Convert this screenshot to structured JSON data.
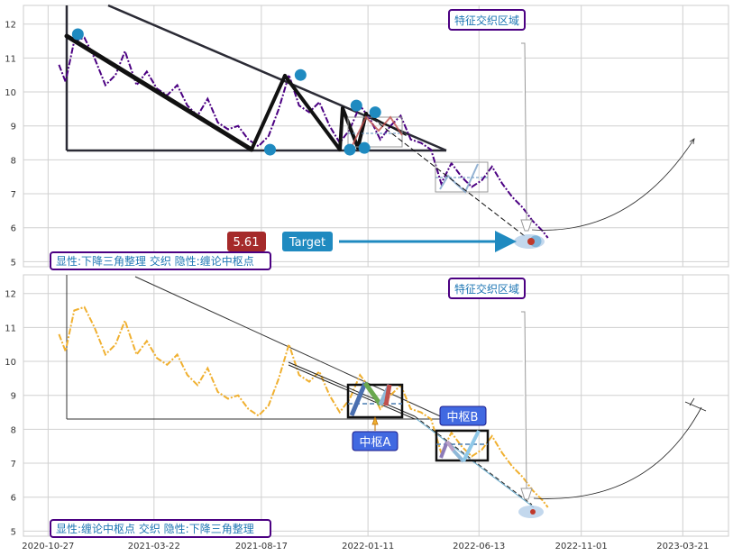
{
  "chart_data": [
    {
      "type": "line",
      "panel": "top",
      "y_ticks": [
        "12",
        "11",
        "10",
        "9",
        "8",
        "7",
        "6",
        "5"
      ],
      "ylim": [
        4.85,
        12.55
      ],
      "xlim": [
        "2020-09-23",
        "2023-05-23"
      ],
      "grid": true,
      "series": [
        {
          "color": "#4b0082",
          "style": "dash-dot",
          "x": [
            "2020-11-11",
            "2020-11-20",
            "2020-12-02",
            "2020-12-16",
            "2020-12-30",
            "2021-01-14",
            "2021-01-28",
            "2021-02-10",
            "2021-02-26",
            "2021-03-12",
            "2021-03-26",
            "2021-04-09",
            "2021-04-23",
            "2021-05-07",
            "2021-05-21",
            "2021-06-04",
            "2021-06-18",
            "2021-07-02",
            "2021-07-16",
            "2021-07-30",
            "2021-08-13",
            "2021-08-27",
            "2021-09-10",
            "2021-09-24",
            "2021-10-08",
            "2021-10-22",
            "2021-11-05",
            "2021-11-19",
            "2021-12-03",
            "2021-12-17",
            "2021-12-31",
            "2022-01-14",
            "2022-01-28",
            "2022-02-11",
            "2022-02-25",
            "2022-03-11",
            "2022-03-25",
            "2022-04-08",
            "2022-04-22",
            "2022-05-06",
            "2022-05-20",
            "2022-06-03",
            "2022-06-17",
            "2022-07-01",
            "2022-07-15",
            "2022-07-29",
            "2022-08-12",
            "2022-08-26",
            "2022-09-09",
            "2022-09-16"
          ],
          "values": [
            10.8,
            10.3,
            11.5,
            11.6,
            11.0,
            10.2,
            10.5,
            11.2,
            10.2,
            10.6,
            10.1,
            9.9,
            10.2,
            9.6,
            9.3,
            9.8,
            9.1,
            8.9,
            9.0,
            8.6,
            8.4,
            8.7,
            9.5,
            10.5,
            9.6,
            9.4,
            9.7,
            9.0,
            8.5,
            8.9,
            9.6,
            9.2,
            8.6,
            9.0,
            9.3,
            8.6,
            8.5,
            8.3,
            7.3,
            7.9,
            7.5,
            7.2,
            7.4,
            7.8,
            7.3,
            6.9,
            6.6,
            6.2,
            5.9,
            5.7
          ]
        }
      ],
      "markers": [
        {
          "x": "2020-12-07",
          "y": 11.7
        },
        {
          "x": "2021-08-29",
          "y": 8.3
        },
        {
          "x": "2021-10-10",
          "y": 10.5
        },
        {
          "x": "2021-12-17",
          "y": 8.3
        },
        {
          "x": "2021-12-26",
          "y": 9.6
        },
        {
          "x": "2022-01-06",
          "y": 8.35
        },
        {
          "x": "2022-01-21",
          "y": 9.4
        },
        {
          "x": "2022-08-30",
          "y": 5.6
        }
      ],
      "price_label": "5.61",
      "target_label": "Target",
      "zone_label": "特征交织区域",
      "caption": "显性:下降三角整理 交织 隐性:缠论中枢点"
    },
    {
      "type": "line",
      "panel": "bottom",
      "y_ticks": [
        "12",
        "11",
        "10",
        "9",
        "8",
        "7",
        "6",
        "5"
      ],
      "ylim": [
        4.85,
        12.55
      ],
      "x_ticks": [
        "2020-10-27",
        "2021-03-22",
        "2021-08-17",
        "2022-01-11",
        "2022-06-13",
        "2022-11-01",
        "2023-03-21"
      ],
      "xlim": [
        "2020-09-23",
        "2023-05-23"
      ],
      "grid": true,
      "series": [
        {
          "color": "#f0b030",
          "style": "dash-dot",
          "x": [
            "2020-11-11",
            "2020-11-20",
            "2020-12-02",
            "2020-12-16",
            "2020-12-30",
            "2021-01-14",
            "2021-01-28",
            "2021-02-10",
            "2021-02-26",
            "2021-03-12",
            "2021-03-26",
            "2021-04-09",
            "2021-04-23",
            "2021-05-07",
            "2021-05-21",
            "2021-06-04",
            "2021-06-18",
            "2021-07-02",
            "2021-07-16",
            "2021-07-30",
            "2021-08-13",
            "2021-08-27",
            "2021-09-10",
            "2021-09-24",
            "2021-10-08",
            "2021-10-22",
            "2021-11-05",
            "2021-11-19",
            "2021-12-03",
            "2021-12-17",
            "2021-12-31",
            "2022-01-14",
            "2022-01-28",
            "2022-02-11",
            "2022-02-25",
            "2022-03-11",
            "2022-03-25",
            "2022-04-08",
            "2022-04-22",
            "2022-05-06",
            "2022-05-20",
            "2022-06-03",
            "2022-06-17",
            "2022-07-01",
            "2022-07-15",
            "2022-07-29",
            "2022-08-12",
            "2022-08-26",
            "2022-09-09",
            "2022-09-16"
          ],
          "values": [
            10.8,
            10.3,
            11.5,
            11.6,
            11.0,
            10.2,
            10.5,
            11.2,
            10.2,
            10.6,
            10.1,
            9.9,
            10.2,
            9.6,
            9.3,
            9.8,
            9.1,
            8.9,
            9.0,
            8.6,
            8.4,
            8.7,
            9.5,
            10.5,
            9.6,
            9.4,
            9.7,
            9.0,
            8.5,
            8.9,
            9.6,
            9.2,
            8.6,
            9.0,
            9.3,
            8.6,
            8.5,
            8.3,
            7.3,
            7.9,
            7.5,
            7.2,
            7.4,
            7.8,
            7.3,
            6.9,
            6.6,
            6.2,
            5.9,
            5.7
          ]
        }
      ],
      "zone_label": "特征交织区域",
      "pivot_a_label": "中枢A",
      "pivot_b_label": "中枢B",
      "caption": "显性:缠论中枢点 交织 隐性:下降三角整理"
    }
  ],
  "colors": {
    "label_border": "#4b0082",
    "label_text": "#1f77b4",
    "price_badge": "#a52a2a",
    "target_badge": "#1f8ac0",
    "pivot_badge": "#4169e1"
  }
}
